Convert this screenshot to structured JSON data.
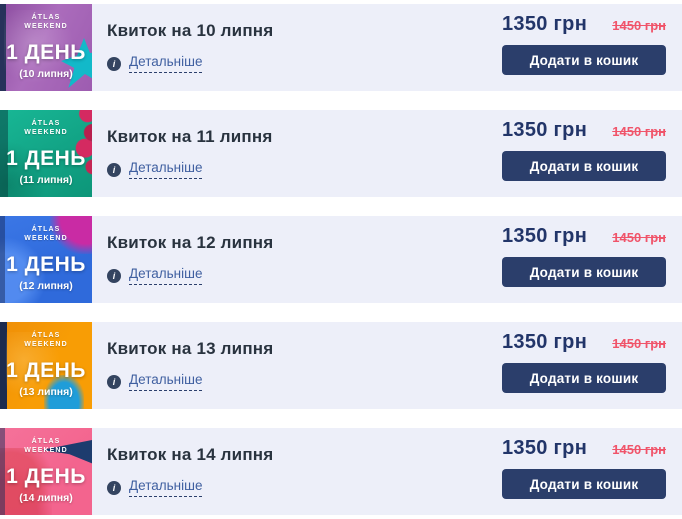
{
  "colors": {
    "panel_bg": "#edeff9",
    "title": "#29333f",
    "link": "#3f5fa0",
    "link_underline": "#2b3f6c",
    "info_icon_bg": "#344460",
    "price": "#223569",
    "old_price": "#f0546a",
    "button_bg": "#2b3e6b",
    "button_text": "#ffffff"
  },
  "icons": {
    "info": "i"
  },
  "tickets": [
    {
      "badge": {
        "brand": [
          "Átlas",
          "Weekend"
        ],
        "day": "1 ДЕНЬ",
        "date": "(10 липня)",
        "colors": {
          "bg": "#9d5cb0",
          "accent": "#12b9c9"
        }
      },
      "title": "Квиток на 10 липня",
      "details_label": "Детальніше",
      "price": "1350 грн",
      "old_price": "1450 грн",
      "add_button": "Додати в кошик"
    },
    {
      "badge": {
        "brand": [
          "Átlas",
          "Weekend"
        ],
        "day": "1 ДЕНЬ",
        "date": "(11 липня)",
        "colors": {
          "bg": "#12a385",
          "accent": "#d42a61"
        }
      },
      "title": "Квиток на 11 липня",
      "details_label": "Детальніше",
      "price": "1350 грн",
      "old_price": "1450 грн",
      "add_button": "Додати в кошик"
    },
    {
      "badge": {
        "brand": [
          "Átlas",
          "Weekend"
        ],
        "day": "1 ДЕНЬ",
        "date": "(12 липня)",
        "colors": {
          "bg": "#2f6adb",
          "accent": "#c92ba4"
        }
      },
      "title": "Квиток на 12 липня",
      "details_label": "Детальніше",
      "price": "1350 грн",
      "old_price": "1450 грн",
      "add_button": "Додати в кошик"
    },
    {
      "badge": {
        "brand": [
          "Átlas",
          "Weekend"
        ],
        "day": "1 ДЕНЬ",
        "date": "(13 липня)",
        "colors": {
          "bg": "#f89d05",
          "accent": "#1f9dd9"
        }
      },
      "title": "Квиток на 13 липня",
      "details_label": "Детальніше",
      "price": "1350 грн",
      "old_price": "1450 грн",
      "add_button": "Додати в кошик"
    },
    {
      "badge": {
        "brand": [
          "Átlas",
          "Weekend"
        ],
        "day": "1 ДЕНЬ",
        "date": "(14 липня)",
        "colors": {
          "bg": "#f3648e",
          "accent": "#1d3c6e"
        }
      },
      "title": "Квиток на 14 липня",
      "details_label": "Детальніше",
      "price": "1350 грн",
      "old_price": "1450 грн",
      "add_button": "Додати в кошик"
    }
  ]
}
